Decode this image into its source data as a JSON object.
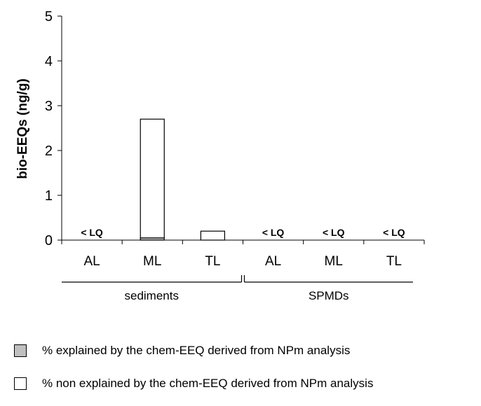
{
  "chart_data": {
    "type": "bar",
    "stacked": true,
    "title": "",
    "xlabel": "",
    "ylabel": "bio-EEQs (ng/g)",
    "ylim": [
      0,
      5
    ],
    "yticks": [
      "0",
      "1",
      "2",
      "3",
      "4",
      "5"
    ],
    "grid": false,
    "categories": [
      "AL",
      "ML",
      "TL",
      "AL",
      "ML",
      "TL"
    ],
    "groups": [
      {
        "label": "sediments",
        "categories": [
          0,
          1,
          2
        ]
      },
      {
        "label": "SPMDs",
        "categories": [
          3,
          4,
          5
        ]
      }
    ],
    "series": [
      {
        "name": "% explained by the chem-EEQ derived from NPm analysis",
        "color": "#c0c0c0",
        "values": [
          0,
          0.05,
          0,
          0,
          0,
          0
        ]
      },
      {
        "name": "% non explained by the chem-EEQ derived from NPm analysis",
        "color": "#ffffff",
        "values": [
          0,
          2.65,
          0.2,
          0,
          0,
          0
        ]
      }
    ],
    "annotations": [
      "< LQ",
      "",
      "",
      "< LQ",
      "< LQ",
      "< LQ"
    ],
    "legend_position": "bottom"
  }
}
